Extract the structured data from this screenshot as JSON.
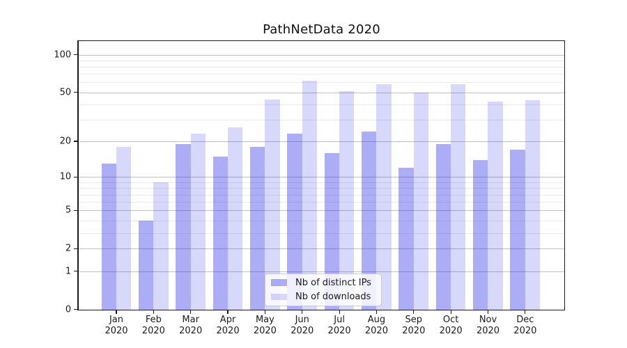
{
  "chart_data": {
    "type": "bar",
    "title": "PathNetData 2020",
    "categories": [
      "Jan",
      "Feb",
      "Mar",
      "Apr",
      "May",
      "Jun",
      "Jul",
      "Aug",
      "Sep",
      "Oct",
      "Nov",
      "Dec"
    ],
    "category_year": "2020",
    "series": [
      {
        "name": "Nb of distinct IPs",
        "color": "rgba(40,40,230,0.38)",
        "values": [
          13,
          4,
          19,
          15,
          18,
          23,
          16,
          24,
          12,
          19,
          14,
          17
        ]
      },
      {
        "name": "Nb of downloads",
        "color": "rgba(40,40,230,0.18)",
        "values": [
          18,
          9,
          23,
          26,
          44,
          62,
          51,
          58,
          50,
          58,
          42,
          43
        ]
      }
    ],
    "y_axis": {
      "scale": "symlog",
      "major_ticks": [
        0,
        1,
        2,
        5,
        10,
        20,
        50,
        100
      ],
      "minor_ticks": [
        3,
        4,
        6,
        7,
        8,
        9,
        30,
        40,
        60,
        70,
        80,
        90
      ],
      "range": [
        0,
        129
      ]
    },
    "xlabel": "",
    "ylabel": "",
    "grid": "horizontal major and minor, behind translucent bars",
    "legend_position": "lower center inside plot",
    "colors": {
      "grid_major": "#bfbfbf",
      "grid_minor": "#e9e9e9",
      "axis": "#1a1a1a",
      "background": "#ffffff"
    }
  }
}
